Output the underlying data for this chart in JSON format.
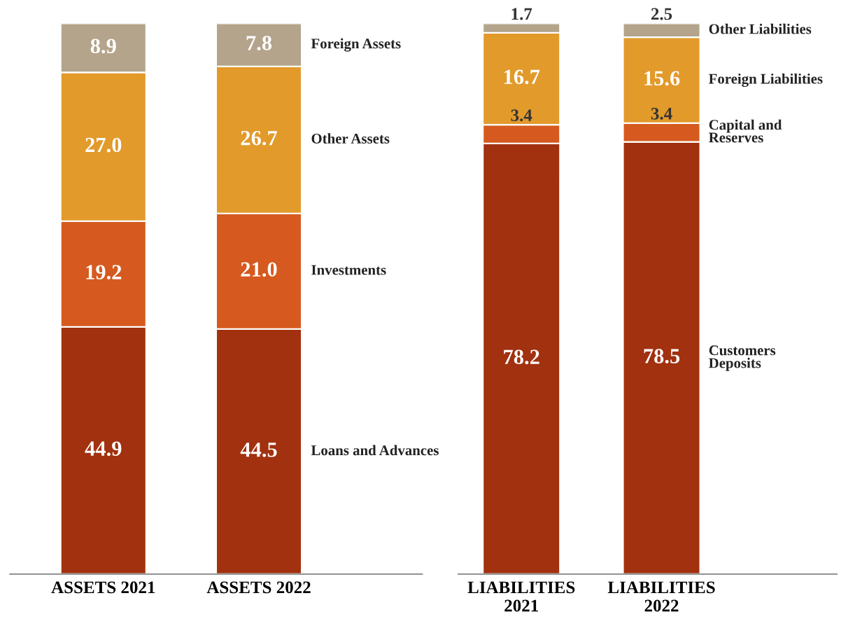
{
  "chart_data": [
    {
      "type": "bar",
      "stacked": true,
      "legend": false,
      "grid": false,
      "categories": [
        "ASSETS 2021",
        "ASSETS 2022"
      ],
      "series": [
        {
          "name": "Loans and Advances",
          "color": "#a1310f",
          "values": [
            44.9,
            44.5
          ],
          "value_labels": [
            "44.9",
            "44.5"
          ]
        },
        {
          "name": "Investments",
          "color": "#d65a1f",
          "values": [
            19.2,
            21.0
          ],
          "value_labels": [
            "19.2",
            "21.0"
          ]
        },
        {
          "name": "Other Assets",
          "color": "#e29a2b",
          "values": [
            27.0,
            26.7
          ],
          "value_labels": [
            "27.0",
            "26.7"
          ]
        },
        {
          "name": "Foreign Assets",
          "color": "#b3a48b",
          "values": [
            8.9,
            7.8
          ],
          "value_labels": [
            "8.9",
            "7.8"
          ]
        }
      ]
    },
    {
      "type": "bar",
      "stacked": true,
      "legend": false,
      "grid": false,
      "categories": [
        "LIABILITIES\n2021",
        "LIABILITIES\n2022"
      ],
      "series": [
        {
          "name": "Customers\nDeposits",
          "color": "#a1310f",
          "values": [
            78.2,
            78.5
          ],
          "value_labels": [
            "78.2",
            "78.5"
          ]
        },
        {
          "name": "Capital and\nReserves",
          "color": "#d65a1f",
          "values": [
            3.4,
            3.4
          ],
          "value_labels": [
            "3.4",
            "3.4"
          ]
        },
        {
          "name": "Foreign Liabilities",
          "color": "#e29a2b",
          "values": [
            16.7,
            15.6
          ],
          "value_labels": [
            "16.7",
            "15.6"
          ]
        },
        {
          "name": "Other Liabilities",
          "color": "#b3a48b",
          "values": [
            1.7,
            2.5
          ],
          "value_labels": [
            "1.7",
            "2.5"
          ]
        }
      ]
    }
  ]
}
